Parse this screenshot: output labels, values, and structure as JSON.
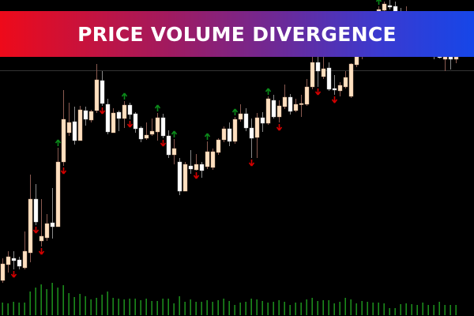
{
  "title": "PRICE VOLUME DIVERGENCE",
  "colors": {
    "background": "#000000",
    "bull_body": "#ffe0c0",
    "bear_body": "#ffffff",
    "bull_wick": "#8a5a50",
    "bear_wick": "#8a8a8a",
    "up_arrow": "#0b8a1a",
    "down_arrow": "#d40000",
    "volume": "#22aa22",
    "price_line": "#333333",
    "banner_start": "#ee0a1a",
    "banner_end": "#1646e8"
  },
  "chart_data": {
    "type": "candlestick",
    "title": "PRICE VOLUME DIVERGENCE",
    "ylim": [
      0,
      400
    ],
    "grid": false,
    "price_line": 311,
    "ohlc": [
      [
        45,
        73,
        42,
        66
      ],
      [
        65,
        82,
        55,
        75
      ],
      [
        73,
        82,
        59,
        70
      ],
      [
        71,
        75,
        59,
        63
      ],
      [
        61,
        107,
        59,
        82
      ],
      [
        80,
        179,
        68,
        148
      ],
      [
        148,
        167,
        115,
        119
      ],
      [
        95,
        148,
        88,
        101
      ],
      [
        99,
        129,
        95,
        117
      ],
      [
        118,
        162,
        98,
        113
      ],
      [
        113,
        213,
        113,
        195
      ],
      [
        195,
        286,
        190,
        249
      ],
      [
        232,
        270,
        228,
        245
      ],
      [
        246,
        265,
        217,
        222
      ],
      [
        222,
        266,
        222,
        261
      ],
      [
        260,
        265,
        241,
        249
      ],
      [
        248,
        261,
        245,
        259
      ],
      [
        260,
        319,
        257,
        299
      ],
      [
        298,
        310,
        266,
        269
      ],
      [
        268,
        275,
        230,
        233
      ],
      [
        232,
        263,
        232,
        257
      ],
      [
        258,
        260,
        234,
        250
      ],
      [
        250,
        272,
        238,
        267
      ],
      [
        267,
        270,
        249,
        255
      ],
      [
        256,
        258,
        232,
        237
      ],
      [
        238,
        240,
        220,
        224
      ],
      [
        225,
        245,
        223,
        229
      ],
      [
        230,
        250,
        228,
        234
      ],
      [
        233,
        257,
        222,
        251
      ],
      [
        251,
        256,
        225,
        228
      ],
      [
        228,
        235,
        200,
        204
      ],
      [
        204,
        224,
        192,
        212
      ],
      [
        195,
        200,
        153,
        158
      ],
      [
        158,
        195,
        158,
        192
      ],
      [
        190,
        210,
        180,
        186
      ],
      [
        185,
        205,
        184,
        192
      ],
      [
        192,
        195,
        175,
        184
      ],
      [
        189,
        221,
        186,
        208
      ],
      [
        188,
        212,
        185,
        208
      ],
      [
        207,
        225,
        204,
        223
      ],
      [
        223,
        240,
        220,
        237
      ],
      [
        237,
        245,
        215,
        221
      ],
      [
        221,
        252,
        218,
        249
      ],
      [
        249,
        268,
        246,
        256
      ],
      [
        256,
        263,
        234,
        238
      ],
      [
        238,
        250,
        200,
        225
      ],
      [
        226,
        257,
        200,
        251
      ],
      [
        251,
        258,
        233,
        244
      ],
      [
        244,
        278,
        242,
        275
      ],
      [
        273,
        280,
        250,
        252
      ],
      [
        252,
        273,
        245,
        266
      ],
      [
        265,
        293,
        262,
        277
      ],
      [
        277,
        281,
        255,
        259
      ],
      [
        260,
        275,
        258,
        268
      ],
      [
        268,
        280,
        252,
        269
      ],
      [
        268,
        300,
        266,
        290
      ],
      [
        290,
        330,
        287,
        321
      ],
      [
        321,
        335,
        290,
        310
      ],
      [
        303,
        330,
        300,
        313
      ],
      [
        314,
        321,
        285,
        287
      ],
      [
        288,
        305,
        280,
        286
      ],
      [
        285,
        296,
        278,
        292
      ],
      [
        290,
        310,
        288,
        302
      ],
      [
        278,
        320,
        276,
        319
      ],
      [
        318,
        335,
        315,
        330
      ],
      [
        330,
        350,
        325,
        345
      ],
      [
        345,
        365,
        340,
        360
      ],
      [
        360,
        378,
        355,
        372
      ],
      [
        372,
        392,
        370,
        388
      ],
      [
        387,
        398,
        385,
        395
      ],
      [
        393,
        400,
        388,
        391
      ],
      [
        392,
        398,
        380,
        385
      ],
      [
        385,
        390,
        370,
        374
      ],
      [
        375,
        392,
        366,
        378
      ],
      [
        378,
        382,
        360,
        364
      ],
      [
        364,
        370,
        350,
        353
      ],
      [
        353,
        360,
        342,
        345
      ],
      [
        345,
        350,
        333,
        336
      ],
      [
        336,
        342,
        325,
        329
      ],
      [
        329,
        333,
        326,
        327
      ],
      [
        325,
        330,
        310,
        328
      ],
      [
        328,
        330,
        312,
        325
      ],
      [
        325,
        330,
        320,
        328
      ]
    ],
    "up_arrows": [
      10,
      22,
      28,
      31,
      37,
      42,
      48,
      68,
      71
    ],
    "down_arrows": [
      2,
      6,
      7,
      11,
      18,
      23,
      29,
      35,
      45,
      50,
      57,
      60
    ],
    "volume": [
      16,
      15,
      17,
      16,
      16,
      30,
      35,
      39,
      33,
      41,
      35,
      38,
      28,
      23,
      27,
      24,
      20,
      22,
      26,
      30,
      22,
      21,
      20,
      21,
      21,
      19,
      21,
      18,
      18,
      21,
      21,
      15,
      24,
      17,
      20,
      17,
      17,
      19,
      17,
      19,
      21,
      18,
      13,
      16,
      17,
      21,
      20,
      18,
      16,
      17,
      19,
      17,
      13,
      16,
      16,
      20,
      22,
      18,
      19,
      19,
      15,
      17,
      22,
      20,
      15,
      18,
      17,
      16,
      16,
      15,
      9,
      9,
      14,
      15,
      14,
      13,
      16,
      13,
      13,
      17,
      13,
      13,
      13
    ]
  }
}
